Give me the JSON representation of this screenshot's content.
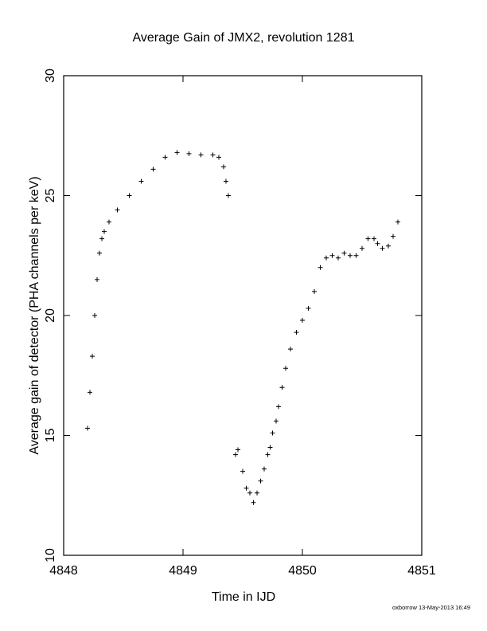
{
  "chart_data": {
    "type": "scatter",
    "title": "Average Gain of JMX2, revolution 1281",
    "xlabel": "Time in IJD",
    "ylabel": "Average gain of detector (PHA channels per keV)",
    "xlim": [
      4848,
      4851
    ],
    "ylim": [
      10,
      30
    ],
    "x_ticks": [
      4848,
      4849,
      4850,
      4851
    ],
    "y_ticks": [
      10,
      15,
      20,
      25,
      30
    ],
    "marker": "plus",
    "grid": false,
    "legend": "none",
    "color": "#000000",
    "series": [
      {
        "x": [
          4848.2,
          4848.22,
          4848.24,
          4848.26,
          4848.28,
          4848.3,
          4848.32,
          4848.34,
          4848.38,
          4848.45,
          4848.55,
          4848.65,
          4848.75,
          4848.85,
          4848.95,
          4849.05,
          4849.15,
          4849.25,
          4849.3,
          4849.34,
          4849.36,
          4849.38
        ],
        "y": [
          15.3,
          16.8,
          18.3,
          20.0,
          21.5,
          22.6,
          23.2,
          23.5,
          23.9,
          24.4,
          25.0,
          25.6,
          26.1,
          26.6,
          26.8,
          26.75,
          26.7,
          26.7,
          26.6,
          26.2,
          25.6,
          25.0
        ]
      },
      {
        "x": [
          4849.44,
          4849.46,
          4849.5,
          4849.53,
          4849.56,
          4849.59,
          4849.62,
          4849.65,
          4849.68,
          4849.71,
          4849.73,
          4849.75,
          4849.78,
          4849.8,
          4849.83,
          4849.86,
          4849.9,
          4849.95,
          4850.0,
          4850.05,
          4850.1,
          4850.15,
          4850.2,
          4850.25,
          4850.3,
          4850.35,
          4850.4,
          4850.45,
          4850.5,
          4850.55,
          4850.6,
          4850.63,
          4850.67,
          4850.72,
          4850.76,
          4850.8
        ],
        "y": [
          14.2,
          14.4,
          13.5,
          12.8,
          12.6,
          12.2,
          12.6,
          13.1,
          13.6,
          14.2,
          14.5,
          15.1,
          15.6,
          16.2,
          17.0,
          17.8,
          18.6,
          19.3,
          19.8,
          20.3,
          21.0,
          22.0,
          22.4,
          22.5,
          22.4,
          22.6,
          22.5,
          22.5,
          22.8,
          23.2,
          23.2,
          23.0,
          22.8,
          22.9,
          23.3,
          23.9
        ]
      }
    ]
  },
  "footer": "oxborrow 13-May-2013 16:49"
}
